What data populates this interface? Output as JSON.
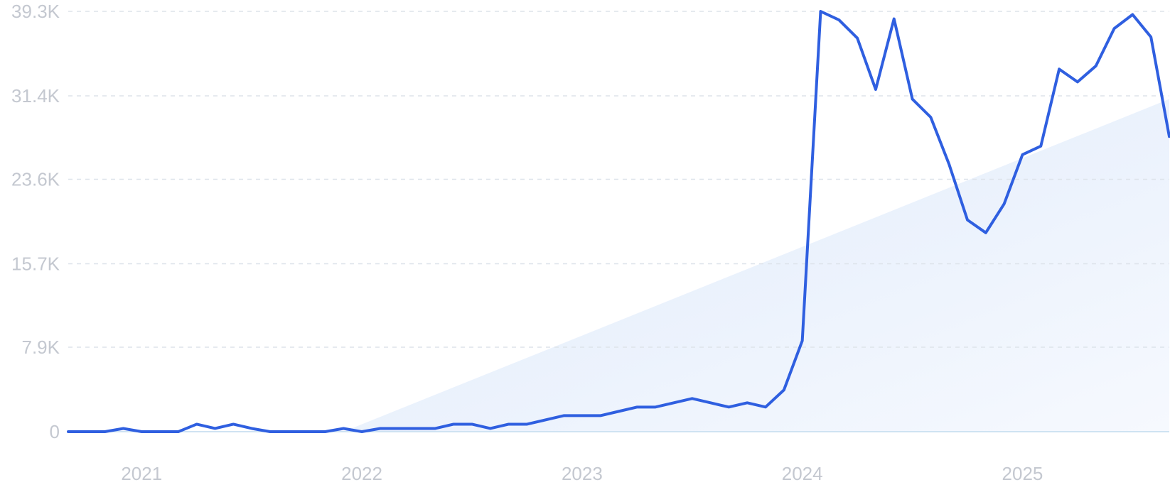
{
  "colors": {
    "line": "#2f5fe0",
    "trend_fill_start": "#dfeafb",
    "trend_fill_end": "#f6f9fe",
    "grid": "#dde3ea",
    "tick_text": "#c4c8d0"
  },
  "chart_data": {
    "type": "line",
    "title": "",
    "xlabel": "",
    "ylabel": "",
    "grid": true,
    "legend": "none",
    "ylim": [
      0,
      39300
    ],
    "xlim": [
      "2020-09",
      "2025-09"
    ],
    "y_ticks": [
      {
        "value": 0,
        "label": "0"
      },
      {
        "value": 7900,
        "label": "7.9K"
      },
      {
        "value": 15700,
        "label": "15.7K"
      },
      {
        "value": 23600,
        "label": "23.6K"
      },
      {
        "value": 31400,
        "label": "31.4K"
      },
      {
        "value": 39300,
        "label": "39.3K"
      }
    ],
    "x_ticks": [
      {
        "value": "2021-01",
        "label": "2021"
      },
      {
        "value": "2022-01",
        "label": "2022"
      },
      {
        "value": "2023-01",
        "label": "2023"
      },
      {
        "value": "2024-01",
        "label": "2024"
      },
      {
        "value": "2025-01",
        "label": "2025"
      }
    ],
    "trend": {
      "x": [
        "2021-12",
        "2025-09"
      ],
      "y": [
        0,
        31100
      ]
    },
    "series": [
      {
        "x": [
          "2020-09",
          "2020-10",
          "2020-11",
          "2020-12",
          "2021-01",
          "2021-02",
          "2021-03",
          "2021-04",
          "2021-05",
          "2021-06",
          "2021-07",
          "2021-08",
          "2021-09",
          "2021-10",
          "2021-11",
          "2021-12",
          "2022-01",
          "2022-02",
          "2022-03",
          "2022-04",
          "2022-05",
          "2022-06",
          "2022-07",
          "2022-08",
          "2022-09",
          "2022-10",
          "2022-11",
          "2022-12",
          "2023-01",
          "2023-02",
          "2023-03",
          "2023-04",
          "2023-05",
          "2023-06",
          "2023-07",
          "2023-08",
          "2023-09",
          "2023-10",
          "2023-11",
          "2023-12",
          "2024-01",
          "2024-02",
          "2024-03",
          "2024-04",
          "2024-05",
          "2024-06",
          "2024-07",
          "2024-08",
          "2024-09",
          "2024-10",
          "2024-11",
          "2024-12",
          "2025-01",
          "2025-02",
          "2025-03",
          "2025-04",
          "2025-05",
          "2025-06",
          "2025-07",
          "2025-08",
          "2025-09"
        ],
        "y": [
          0,
          0,
          0,
          300,
          0,
          0,
          0,
          700,
          300,
          700,
          300,
          0,
          0,
          0,
          0,
          300,
          0,
          300,
          300,
          300,
          300,
          700,
          700,
          300,
          700,
          700,
          1100,
          1500,
          1500,
          1500,
          1900,
          2300,
          2300,
          2700,
          3100,
          2700,
          2300,
          2700,
          2300,
          3900,
          8500,
          39300,
          38500,
          36800,
          32000,
          38600,
          31100,
          29400,
          25000,
          19800,
          18600,
          21300,
          25900,
          26700,
          33900,
          32700,
          34200,
          37700,
          39000,
          36900,
          27600
        ]
      }
    ]
  }
}
